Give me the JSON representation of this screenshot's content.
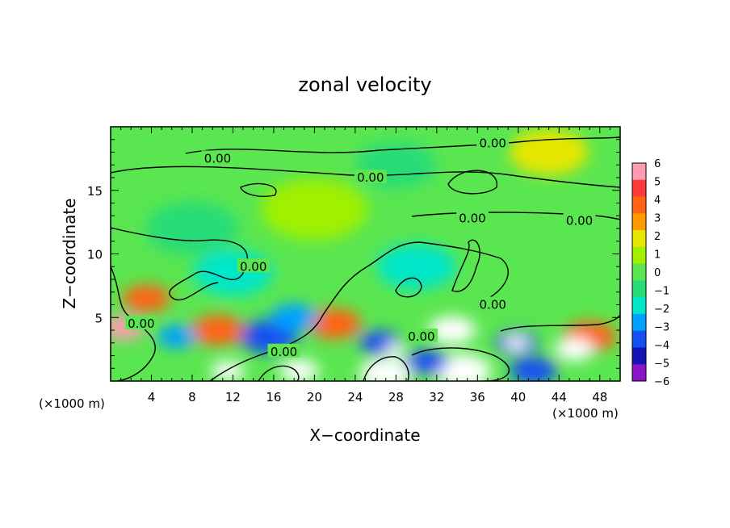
{
  "chart_data": {
    "type": "heatmap",
    "title": "zonal velocity",
    "xlabel": "X−coordinate",
    "ylabel": "Z−coordinate",
    "x_unit_label_left": "(×1000 m)",
    "x_unit_label_right": "(×1000 m)",
    "xlim": [
      0,
      50
    ],
    "ylim": [
      0,
      20
    ],
    "x_ticks": [
      4,
      8,
      12,
      16,
      20,
      24,
      28,
      32,
      36,
      40,
      44,
      48
    ],
    "y_ticks": [
      5,
      10,
      15
    ],
    "colorbar": {
      "ticks": [
        "6",
        "5",
        "4",
        "3",
        "2",
        "1",
        "0",
        "−1",
        "−2",
        "−3",
        "−4",
        "−5",
        "−6"
      ],
      "colors": [
        "#ff9cb4",
        "#ff3a3a",
        "#ff6414",
        "#ff9a00",
        "#e6e600",
        "#a0f000",
        "#5ae650",
        "#28dc78",
        "#00e6c8",
        "#00a0ff",
        "#1450f0",
        "#1414b4",
        "#8c14c8"
      ]
    },
    "contour_label": "0.00",
    "contour_labels": [
      {
        "text": "0.00",
        "x": 10.5,
        "z": 17.5
      },
      {
        "text": "0.00",
        "x": 25.5,
        "z": 16.0
      },
      {
        "text": "0.00",
        "x": 37.5,
        "z": 18.7
      },
      {
        "text": "0.00",
        "x": 35.5,
        "z": 12.8
      },
      {
        "text": "0.00",
        "x": 46.0,
        "z": 12.6
      },
      {
        "text": "0.00",
        "x": 14.0,
        "z": 9.0
      },
      {
        "text": "0.00",
        "x": 3.0,
        "z": 4.5
      },
      {
        "text": "0.00",
        "x": 17.0,
        "z": 2.3
      },
      {
        "text": "0.00",
        "x": 30.5,
        "z": 3.5
      },
      {
        "text": "0.00",
        "x": 37.5,
        "z": 6.0
      }
    ],
    "blobs": [
      {
        "x": 1.2,
        "z": 4.2,
        "value": 5.5,
        "r": 1.6
      },
      {
        "x": 3.5,
        "z": 6.5,
        "value": 3.5,
        "r": 1.8
      },
      {
        "x": 6.5,
        "z": 3.5,
        "value": -3.5,
        "r": 1.5
      },
      {
        "x": 10.5,
        "z": 4.0,
        "value": 4.0,
        "r": 2.0
      },
      {
        "x": 11.5,
        "z": 0.8,
        "value": 6.5,
        "r": 1.3
      },
      {
        "x": 15.5,
        "z": 3.5,
        "value": -4.5,
        "r": 2.2
      },
      {
        "x": 18.0,
        "z": 5.0,
        "value": -3.5,
        "r": 1.8
      },
      {
        "x": 22.0,
        "z": 4.5,
        "value": 4.0,
        "r": 2.0
      },
      {
        "x": 18.5,
        "z": 0.8,
        "value": 6.5,
        "r": 1.5
      },
      {
        "x": 26.5,
        "z": 3.0,
        "value": -4.5,
        "r": 1.6
      },
      {
        "x": 28.0,
        "z": 2.5,
        "value": 6.5,
        "r": 0.8
      },
      {
        "x": 27.0,
        "z": 0.6,
        "value": 6.5,
        "r": 2.0
      },
      {
        "x": 33.5,
        "z": 4.0,
        "value": 6.5,
        "r": 1.8
      },
      {
        "x": 34.5,
        "z": 0.8,
        "value": 6.5,
        "r": 2.2
      },
      {
        "x": 31.0,
        "z": 1.5,
        "value": -4.0,
        "r": 1.6
      },
      {
        "x": 39.8,
        "z": 3.0,
        "value": 6.5,
        "r": 0.9
      },
      {
        "x": 39.8,
        "z": 3.0,
        "value": -4.5,
        "r": 1.6
      },
      {
        "x": 45.5,
        "z": 2.5,
        "value": 6.5,
        "r": 1.5
      },
      {
        "x": 47.0,
        "z": 3.5,
        "value": 4.0,
        "r": 2.0
      },
      {
        "x": 41.5,
        "z": 0.8,
        "value": -4.0,
        "r": 1.8
      },
      {
        "x": 12.0,
        "z": 8.5,
        "value": -2.2,
        "r": 3.0
      },
      {
        "x": 30.0,
        "z": 9.0,
        "value": -2.0,
        "r": 3.0
      },
      {
        "x": 8.0,
        "z": 12.0,
        "value": -1.2,
        "r": 3.5
      },
      {
        "x": 20.0,
        "z": 13.5,
        "value": 1.0,
        "r": 4.0
      },
      {
        "x": 43.0,
        "z": 18.0,
        "value": 1.5,
        "r": 3.0
      },
      {
        "x": 28.0,
        "z": 17.0,
        "value": -1.0,
        "r": 3.0
      }
    ]
  }
}
